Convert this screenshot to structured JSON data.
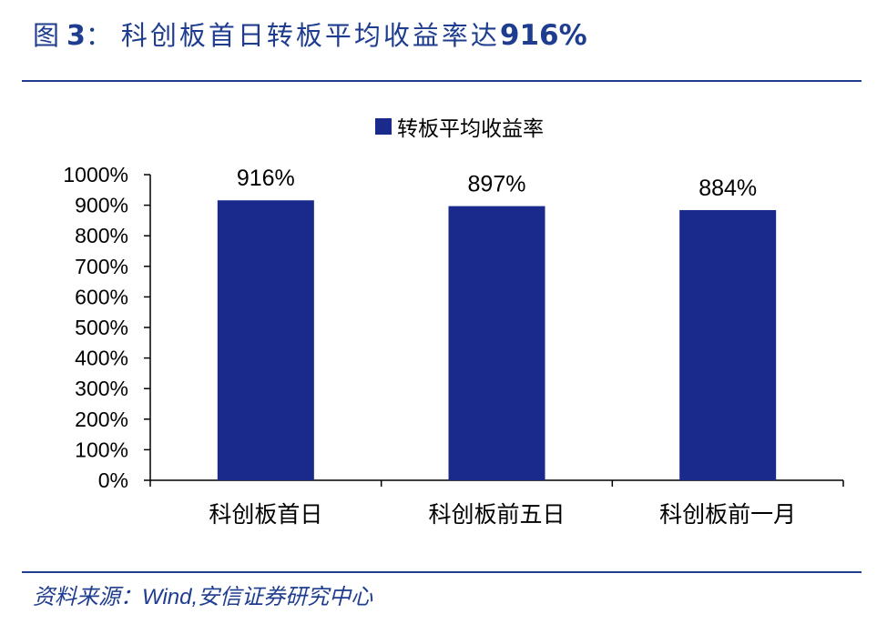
{
  "header": {
    "fig_prefix": "图",
    "fig_number": "3",
    "fig_sep": "：",
    "title_text": "科创板首日转板平均收益率达",
    "title_highlight": "916%"
  },
  "footer": {
    "source": "资料来源：Wind,安信证券研究中心"
  },
  "colors": {
    "accent": "#1f3d8f",
    "bar": "#1a2a8c"
  },
  "chart_data": {
    "type": "bar",
    "categories": [
      "科创板首日",
      "科创板前五日",
      "科创板前一月"
    ],
    "series": [
      {
        "name": "转板平均收益率",
        "values": [
          916,
          897,
          884
        ]
      }
    ],
    "data_labels": [
      "916%",
      "897%",
      "884%"
    ],
    "ylim": [
      0,
      1000
    ],
    "yticks": [
      0,
      100,
      200,
      300,
      400,
      500,
      600,
      700,
      800,
      900,
      1000
    ],
    "ytick_labels": [
      "0%",
      "100%",
      "200%",
      "300%",
      "400%",
      "500%",
      "600%",
      "700%",
      "800%",
      "900%",
      "1000%"
    ],
    "legend": "top-center",
    "grid": false
  }
}
